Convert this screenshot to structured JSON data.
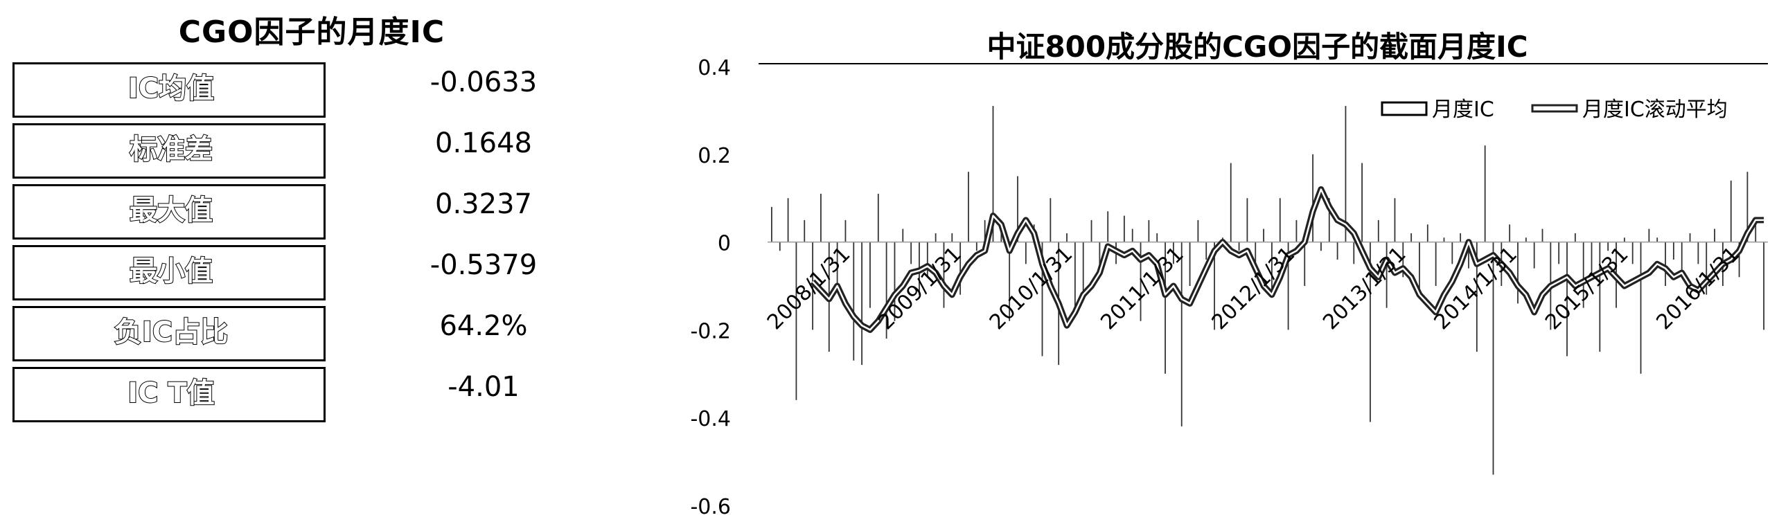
{
  "left_title": "CGO因子的月度IC",
  "stats": [
    {
      "label": "IC均值",
      "value": "-0.0633"
    },
    {
      "label": "标准差",
      "value": "0.1648"
    },
    {
      "label": "最大值",
      "value": "0.3237"
    },
    {
      "label": "最小值",
      "value": "-0.5379"
    },
    {
      "label": "负IC占比",
      "value": "64.2%"
    },
    {
      "label": "IC T值",
      "value": "-4.01"
    }
  ],
  "chart_data": {
    "type": "bar",
    "title": "中证800成分股的CGO因子的截面月度IC",
    "xlabel": "",
    "ylabel": "",
    "ylim": [
      -0.6,
      0.4
    ],
    "yticks": [
      0.4,
      0.2,
      0,
      -0.2,
      -0.4,
      -0.6
    ],
    "x_tick_labels": [
      "2008/1/31",
      "2009/1/31",
      "2010/1/31",
      "2011/1/31",
      "2012/1/31",
      "2013/1/31",
      "2014/1/31",
      "2015/1/31",
      "2016/1/31"
    ],
    "legend_position": "top-right",
    "series": [
      {
        "name": "月度IC",
        "kind": "bar",
        "color": "#333333",
        "values": [
          0.08,
          -0.02,
          0.1,
          -0.36,
          0.05,
          -0.2,
          0.11,
          -0.25,
          -0.1,
          0.05,
          -0.27,
          -0.28,
          -0.15,
          0.11,
          -0.22,
          -0.18,
          0.03,
          -0.05,
          -0.12,
          -0.08,
          0.02,
          -0.15,
          0.02,
          -0.12,
          0.16,
          -0.02,
          0.05,
          0.31,
          0.05,
          -0.18,
          0.15,
          -0.05,
          0.04,
          -0.26,
          0.1,
          -0.28,
          0.02,
          -0.15,
          -0.12,
          0.05,
          -0.08,
          0.07,
          -0.05,
          0.06,
          0.03,
          -0.18,
          0.05,
          0.02,
          -0.3,
          -0.05,
          -0.42,
          -0.1,
          0.05,
          -0.04,
          -0.2,
          0.01,
          0.18,
          -0.02,
          0.1,
          -0.05,
          0.03,
          -0.12,
          0.1,
          -0.2,
          0.05,
          -0.1,
          0.2,
          -0.02,
          0.1,
          -0.04,
          0.31,
          -0.05,
          0.18,
          -0.41,
          0.05,
          -0.15,
          0.1,
          -0.08,
          0.02,
          -0.12,
          0.04,
          -0.1,
          0.01,
          -0.05,
          0.02,
          -0.06,
          -0.25,
          0.22,
          -0.53,
          -0.1,
          0.04,
          -0.14,
          0.01,
          -0.06,
          0.03,
          -0.2,
          -0.05,
          -0.26,
          0.02,
          -0.15,
          -0.08,
          -0.25,
          -0.02,
          -0.15,
          0.01,
          -0.05,
          -0.3,
          0.03,
          0.01,
          -0.1,
          -0.04,
          -0.08,
          0.02,
          -0.05,
          -0.12,
          0.03,
          -0.1,
          0.14,
          -0.08,
          0.16,
          0.04,
          -0.2
        ]
      },
      {
        "name": "月度IC滚动平均",
        "kind": "line",
        "color": "#222222",
        "values": [
          null,
          null,
          null,
          null,
          null,
          -0.09,
          -0.11,
          -0.13,
          -0.1,
          -0.14,
          -0.17,
          -0.19,
          -0.2,
          -0.18,
          -0.15,
          -0.12,
          -0.1,
          -0.07,
          -0.065,
          -0.055,
          -0.07,
          -0.1,
          -0.12,
          -0.08,
          -0.05,
          -0.03,
          -0.02,
          0.06,
          0.04,
          -0.02,
          0.02,
          0.05,
          0.02,
          -0.05,
          -0.1,
          -0.14,
          -0.19,
          -0.16,
          -0.12,
          -0.1,
          -0.07,
          -0.01,
          -0.02,
          -0.03,
          -0.02,
          -0.04,
          -0.03,
          -0.05,
          -0.12,
          -0.1,
          -0.13,
          -0.14,
          -0.1,
          -0.06,
          -0.02,
          0.0,
          -0.02,
          -0.03,
          -0.02,
          -0.06,
          -0.1,
          -0.12,
          -0.08,
          -0.03,
          -0.02,
          0.0,
          0.07,
          0.12,
          0.08,
          0.05,
          0.04,
          0.02,
          -0.02,
          -0.06,
          -0.08,
          -0.04,
          -0.07,
          -0.06,
          -0.08,
          -0.12,
          -0.14,
          -0.16,
          -0.12,
          -0.09,
          -0.05,
          0.0,
          -0.05,
          -0.04,
          -0.03,
          -0.05,
          -0.07,
          -0.1,
          -0.12,
          -0.16,
          -0.12,
          -0.1,
          -0.09,
          -0.08,
          -0.1,
          -0.09,
          -0.08,
          -0.07,
          -0.06,
          -0.08,
          -0.1,
          -0.09,
          -0.08,
          -0.07,
          -0.05,
          -0.06,
          -0.08,
          -0.07,
          -0.1,
          -0.11,
          -0.09,
          -0.07,
          -0.05,
          -0.04,
          -0.02,
          0.02,
          0.05,
          0.05
        ]
      }
    ]
  }
}
